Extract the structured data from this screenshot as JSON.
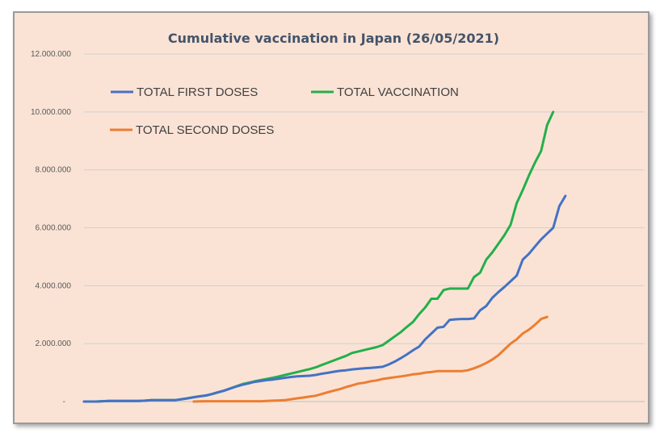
{
  "chart_data": {
    "type": "line",
    "title": "Cumulative vaccination in Japan (26/05/2021)",
    "xlabel": "",
    "ylabel": "",
    "ylim": [
      0,
      12000000
    ],
    "y_ticks": [
      {
        "value": 0,
        "label": "-"
      },
      {
        "value": 2000000,
        "label": "2.000.000"
      },
      {
        "value": 4000000,
        "label": "4.000.000"
      },
      {
        "value": 6000000,
        "label": "6.000.000"
      },
      {
        "value": 8000000,
        "label": "8.000.000"
      },
      {
        "value": 10000000,
        "label": "10.000.000"
      },
      {
        "value": 12000000,
        "label": "12.000.000"
      }
    ],
    "grid": true,
    "legend": "top-left, inside plot",
    "x": [
      0,
      1,
      2,
      3,
      4,
      5,
      6,
      7,
      8,
      9,
      10,
      11,
      12,
      13,
      14,
      15,
      16,
      17,
      18,
      19,
      20,
      21,
      22,
      23,
      24,
      25,
      26,
      27,
      28,
      29,
      30,
      31,
      32,
      33,
      34,
      35,
      36,
      37,
      38,
      39,
      40,
      41,
      42,
      43,
      44,
      45,
      46,
      47,
      48,
      49,
      50,
      51,
      52,
      53,
      54,
      55,
      56,
      57,
      58,
      59,
      60,
      61,
      62,
      63,
      64,
      65,
      66,
      67,
      68,
      69,
      70,
      71,
      72,
      73,
      74,
      75,
      76,
      77,
      78,
      79,
      80,
      81,
      82,
      83,
      84,
      85,
      86,
      87,
      88,
      89,
      90,
      91,
      92
    ],
    "series": [
      {
        "name": "TOTAL FIRST DOSES",
        "color": "#4472c4",
        "values": [
          0,
          0,
          0,
          10000,
          20000,
          20000,
          20000,
          20000,
          20000,
          20000,
          30000,
          50000,
          50000,
          50000,
          50000,
          50000,
          80000,
          110000,
          150000,
          180000,
          210000,
          260000,
          320000,
          380000,
          450000,
          520000,
          580000,
          630000,
          680000,
          710000,
          740000,
          760000,
          790000,
          820000,
          850000,
          870000,
          880000,
          890000,
          920000,
          960000,
          990000,
          1030000,
          1060000,
          1080000,
          1110000,
          1130000,
          1150000,
          1160000,
          1180000,
          1200000,
          1280000,
          1380000,
          1500000,
          1630000,
          1770000,
          1900000,
          2150000,
          2350000,
          2550000,
          2580000,
          2820000,
          2840000,
          2850000,
          2850000,
          2870000,
          3150000,
          3300000,
          3580000,
          3780000,
          3960000,
          4150000,
          4350000,
          4900000,
          5100000,
          5350000,
          5600000,
          5800000,
          6000000,
          6750000,
          7100000,
          null,
          null,
          null,
          null,
          null,
          null,
          null,
          null,
          null,
          null,
          null,
          null,
          null
        ]
      },
      {
        "name": "TOTAL VACCINATION",
        "color": "#22b04b",
        "values": [
          0,
          0,
          0,
          10000,
          20000,
          20000,
          20000,
          20000,
          20000,
          20000,
          30000,
          50000,
          50000,
          50000,
          50000,
          50000,
          80000,
          110000,
          150000,
          180000,
          210000,
          260000,
          320000,
          380000,
          450000,
          530000,
          600000,
          650000,
          700000,
          740000,
          780000,
          820000,
          870000,
          920000,
          970000,
          1020000,
          1070000,
          1120000,
          1180000,
          1260000,
          1340000,
          1420000,
          1500000,
          1580000,
          1680000,
          1730000,
          1780000,
          1830000,
          1880000,
          1950000,
          2100000,
          2250000,
          2400000,
          2580000,
          2750000,
          3020000,
          3250000,
          3550000,
          3550000,
          3850000,
          3900000,
          3900000,
          3900000,
          3900000,
          4300000,
          4450000,
          4900000,
          5150000,
          5450000,
          5750000,
          6100000,
          6850000,
          7300000,
          7800000,
          8250000,
          8650000,
          9550000,
          10000000,
          null,
          null,
          null,
          null,
          null,
          null,
          null,
          null,
          null,
          null,
          null,
          null,
          null,
          null,
          null
        ]
      },
      {
        "name": "TOTAL SECOND DOSES",
        "color": "#ed7d31",
        "values": [
          null,
          null,
          null,
          null,
          null,
          null,
          null,
          null,
          null,
          null,
          null,
          null,
          null,
          null,
          null,
          null,
          null,
          null,
          0,
          5000,
          10000,
          10000,
          10000,
          10000,
          10000,
          10000,
          10000,
          10000,
          10000,
          10000,
          20000,
          30000,
          40000,
          50000,
          80000,
          110000,
          140000,
          170000,
          200000,
          260000,
          320000,
          380000,
          430000,
          500000,
          560000,
          620000,
          650000,
          700000,
          730000,
          780000,
          810000,
          840000,
          870000,
          900000,
          940000,
          960000,
          1000000,
          1020000,
          1050000,
          1050000,
          1050000,
          1050000,
          1050000,
          1080000,
          1150000,
          1230000,
          1330000,
          1450000,
          1600000,
          1800000,
          2000000,
          2150000,
          2350000,
          2480000,
          2650000,
          2850000,
          2920000,
          null,
          null,
          null,
          null,
          null,
          null,
          null,
          null,
          null,
          null,
          null,
          null,
          null,
          null,
          null,
          null
        ]
      }
    ]
  }
}
